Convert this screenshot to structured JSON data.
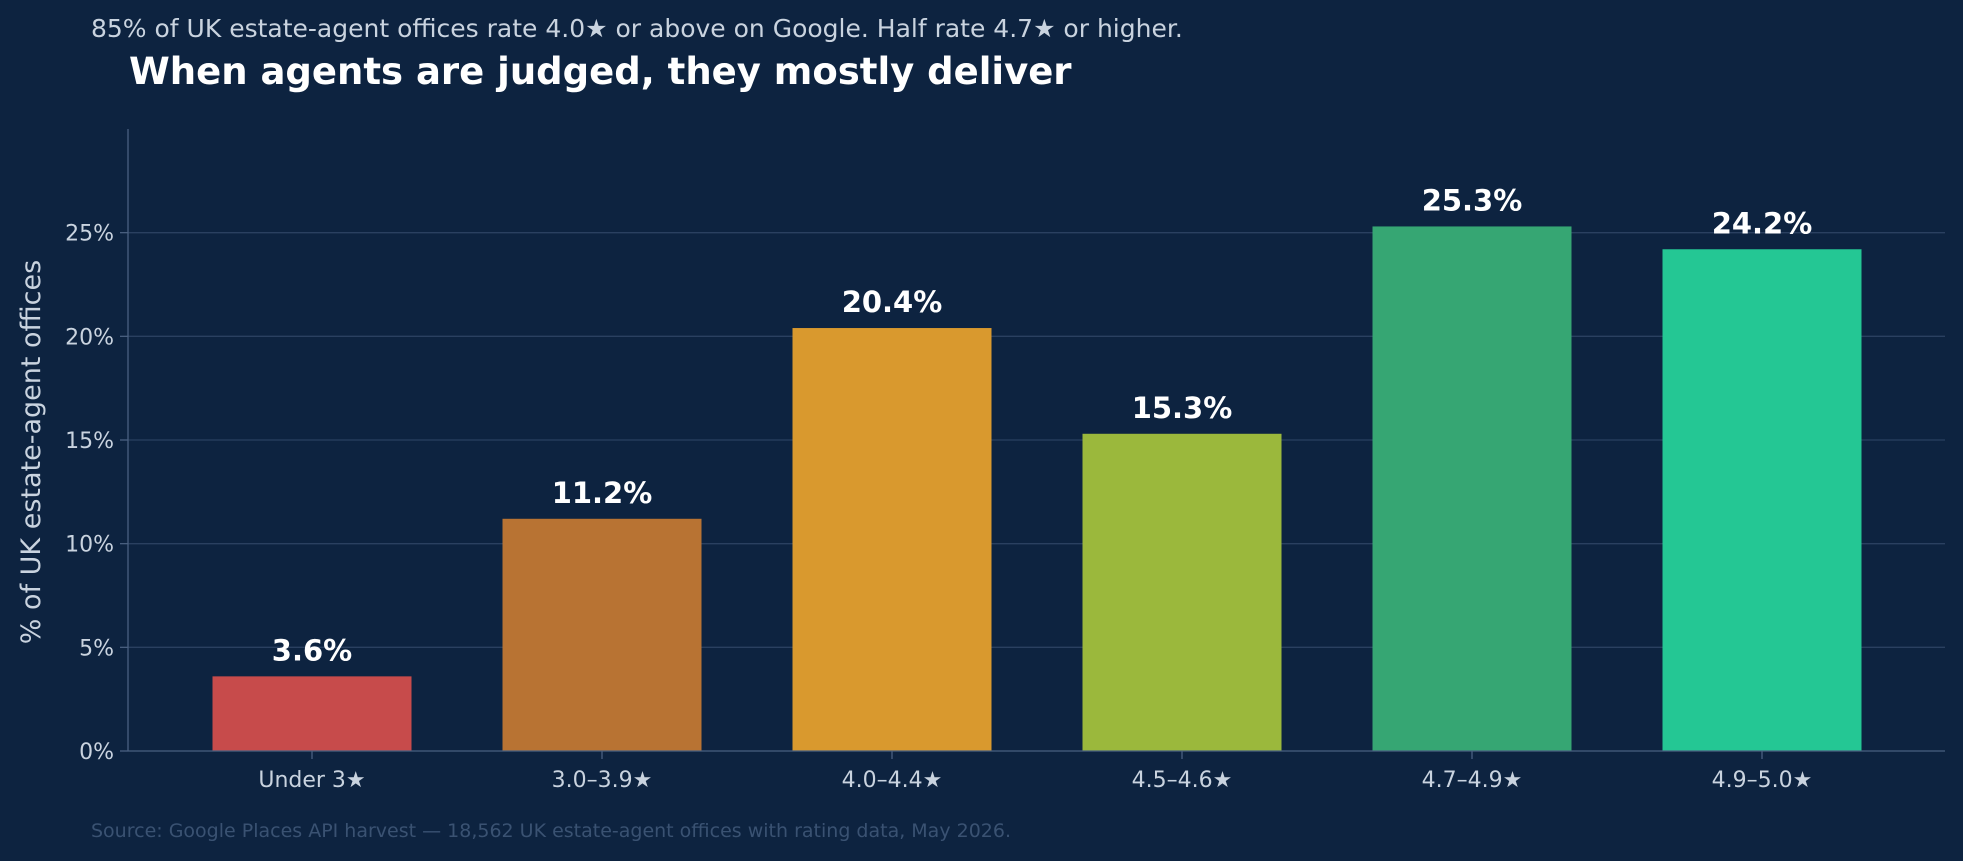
{
  "header": {
    "subtitle": "85% of UK estate-agent offices rate 4.0★ or above on Google. Half rate 4.7★ or higher.",
    "title": "When agents are judged, they mostly deliver"
  },
  "footer": {
    "source": "Source: Google Places API harvest — 18,562 UK estate-agent offices with rating data, May 2026."
  },
  "chart_data": {
    "type": "bar",
    "title": "When agents are judged, they mostly deliver",
    "subtitle": "85% of UK estate-agent offices rate 4.0★ or above on Google. Half rate 4.7★ or higher.",
    "xlabel": "",
    "ylabel": "% of UK estate-agent offices",
    "categories": [
      "Under 3★",
      "3.0–3.9★",
      "4.0–4.4★",
      "4.5–4.6★",
      "4.7–4.9★",
      "4.9–5.0★"
    ],
    "values": [
      3.6,
      11.2,
      20.4,
      15.3,
      25.3,
      24.2
    ],
    "data_labels": [
      "3.6%",
      "11.2%",
      "20.4%",
      "15.3%",
      "25.3%",
      "24.2%"
    ],
    "colors": [
      "#c74b4b",
      "#b87333",
      "#d9992e",
      "#9bb83c",
      "#36a673",
      "#24c794"
    ],
    "ylim": [
      0,
      30
    ],
    "yticks": [
      0,
      5,
      10,
      15,
      20,
      25
    ],
    "ytick_labels": [
      "0%",
      "5%",
      "10%",
      "15%",
      "20%",
      "25%"
    ],
    "grid": true,
    "legend": "none"
  },
  "colors": {
    "background": "#0d2340",
    "gridline": "#2a4060",
    "axis": "#4a6080",
    "text_muted": "#c9d3df",
    "source_text": "#3a5272"
  }
}
